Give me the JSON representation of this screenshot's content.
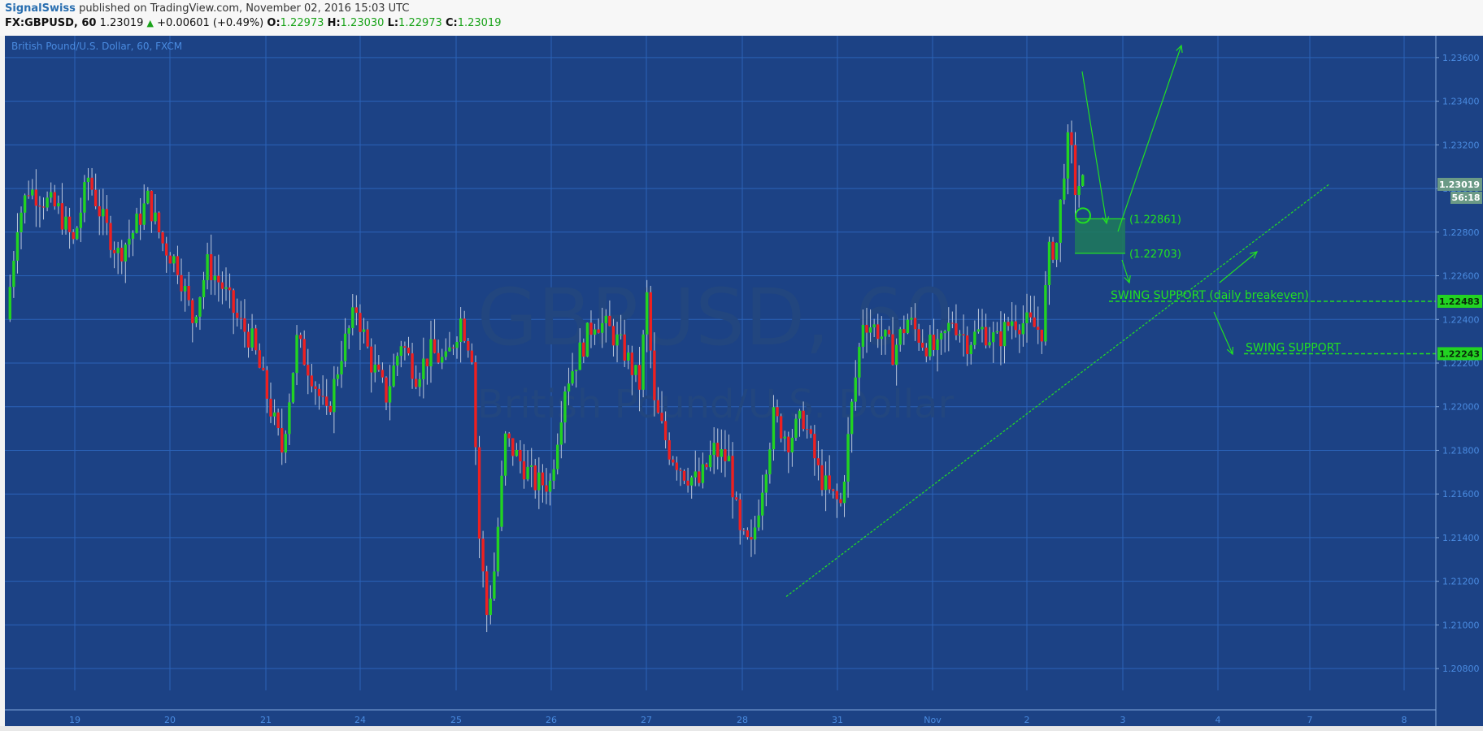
{
  "header": {
    "author": "SignalSwiss",
    "published_text": "published on TradingView.com, November 02, 2016 15:03 UTC",
    "symbol": "FX:GBPUSD, 60",
    "last": "1.23019",
    "change": "+0.00601 (+0.49%)",
    "open_label": "O:",
    "open": "1.22973",
    "high_label": "H:",
    "high": "1.23030",
    "low_label": "L:",
    "low": "1.22973",
    "close_label": "C:",
    "close": "1.23019"
  },
  "colors": {
    "background": "#1c4285",
    "grid": "#2b63b8",
    "up_candle": "#22d322",
    "down_candle": "#ee2020",
    "wick": "#b9c6dc",
    "annotation": "#22e022",
    "axis_text": "#4a8be0"
  },
  "chart_data": {
    "type": "candlestick",
    "title": "British Pound/U.S. Dollar, 60, FXCM",
    "watermark_symbol": "GBPUSD, 60",
    "watermark_name": "British Pound/U.S. Dollar",
    "ylim": [
      1.207,
      1.237
    ],
    "y_ticks": [
      "1.23600",
      "1.23400",
      "1.23200",
      "1.23000",
      "1.22800",
      "1.22600",
      "1.22400",
      "1.22200",
      "1.22000",
      "1.21800",
      "1.21600",
      "1.21400",
      "1.21200",
      "1.21000",
      "1.20800"
    ],
    "x_ticks": [
      "19",
      "20",
      "21",
      "24",
      "25",
      "26",
      "27",
      "28",
      "31",
      "Nov",
      "2",
      "3",
      "4",
      "7",
      "8"
    ],
    "price_path": [
      [
        0,
        1.224
      ],
      [
        3,
        1.2285
      ],
      [
        6,
        1.23
      ],
      [
        10,
        1.2295
      ],
      [
        14,
        1.229
      ],
      [
        18,
        1.2275
      ],
      [
        22,
        1.2305
      ],
      [
        26,
        1.2285
      ],
      [
        30,
        1.227
      ],
      [
        34,
        1.228
      ],
      [
        38,
        1.2295
      ],
      [
        42,
        1.2275
      ],
      [
        46,
        1.2265
      ],
      [
        50,
        1.224
      ],
      [
        54,
        1.2265
      ],
      [
        58,
        1.2255
      ],
      [
        62,
        1.224
      ],
      [
        66,
        1.223
      ],
      [
        70,
        1.2205
      ],
      [
        74,
        1.218
      ],
      [
        78,
        1.223
      ],
      [
        82,
        1.2215
      ],
      [
        86,
        1.2195
      ],
      [
        90,
        1.2225
      ],
      [
        94,
        1.2245
      ],
      [
        98,
        1.222
      ],
      [
        102,
        1.2205
      ],
      [
        106,
        1.223
      ],
      [
        110,
        1.2215
      ],
      [
        114,
        1.2225
      ],
      [
        118,
        1.222
      ],
      [
        122,
        1.224
      ],
      [
        125,
        1.2225
      ],
      [
        127,
        1.214
      ],
      [
        129,
        1.2105
      ],
      [
        131,
        1.2125
      ],
      [
        134,
        1.2185
      ],
      [
        138,
        1.2175
      ],
      [
        142,
        1.2165
      ],
      [
        146,
        1.2165
      ],
      [
        150,
        1.221
      ],
      [
        154,
        1.2225
      ],
      [
        158,
        1.224
      ],
      [
        162,
        1.2235
      ],
      [
        166,
        1.2225
      ],
      [
        170,
        1.221
      ],
      [
        172,
        1.225
      ],
      [
        174,
        1.22
      ],
      [
        178,
        1.218
      ],
      [
        182,
        1.217
      ],
      [
        186,
        1.2165
      ],
      [
        190,
        1.218
      ],
      [
        194,
        1.2175
      ],
      [
        197,
        1.214
      ],
      [
        200,
        1.2135
      ],
      [
        203,
        1.2165
      ],
      [
        206,
        1.2195
      ],
      [
        210,
        1.2185
      ],
      [
        214,
        1.2195
      ],
      [
        218,
        1.217
      ],
      [
        221,
        1.216
      ],
      [
        224,
        1.2155
      ],
      [
        227,
        1.22
      ],
      [
        230,
        1.224
      ],
      [
        234,
        1.2235
      ],
      [
        238,
        1.2225
      ],
      [
        242,
        1.224
      ],
      [
        246,
        1.223
      ],
      [
        250,
        1.2225
      ],
      [
        254,
        1.224
      ],
      [
        258,
        1.223
      ],
      [
        262,
        1.2235
      ],
      [
        266,
        1.223
      ],
      [
        270,
        1.224
      ],
      [
        274,
        1.2238
      ],
      [
        278,
        1.2235
      ],
      [
        280,
        1.227
      ],
      [
        282,
        1.2275
      ],
      [
        284,
        1.231
      ],
      [
        285,
        1.232
      ],
      [
        286,
        1.2315
      ],
      [
        287,
        1.23
      ],
      [
        288,
        1.2302
      ]
    ],
    "price_tags": [
      {
        "label": "1.23019",
        "value": 1.23019,
        "sub": "56:18"
      },
      {
        "label": "1.22483",
        "value": 1.22483
      },
      {
        "label": "1.22243",
        "value": 1.22243
      }
    ],
    "annotations": {
      "zone_top_label": "(1.22861)",
      "zone_top": 1.22861,
      "zone_bottom_label": "(1.22703)",
      "zone_bottom": 1.22703,
      "swing_support_1": "SWING SUPPORT (daily breakeven)",
      "swing_support_1_value": 1.22483,
      "swing_support_2": "SWING SUPPORT",
      "swing_support_2_value": 1.22243
    }
  }
}
